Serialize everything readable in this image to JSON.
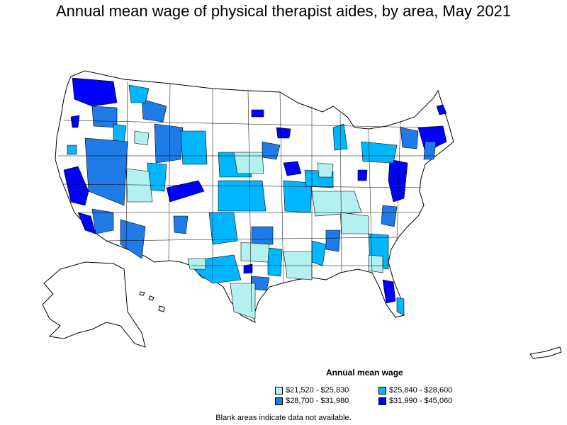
{
  "title": "Annual mean wage of physical therapist aides, by area, May 2021",
  "legend": {
    "title": "Annual mean wage",
    "items": [
      {
        "label": "$21,520 - $25,830",
        "color": "#b3f0f0"
      },
      {
        "label": "$25,840 - $28,600",
        "color": "#00b7ff"
      },
      {
        "label": "$28,700 - $31,980",
        "color": "#1e7be8"
      },
      {
        "label": "$31,990 - $45,060",
        "color": "#0000ff"
      }
    ]
  },
  "footnote": "Blank areas indicate data not available.",
  "colors": {
    "no_data": "#ffffff",
    "border": "#000000"
  }
}
